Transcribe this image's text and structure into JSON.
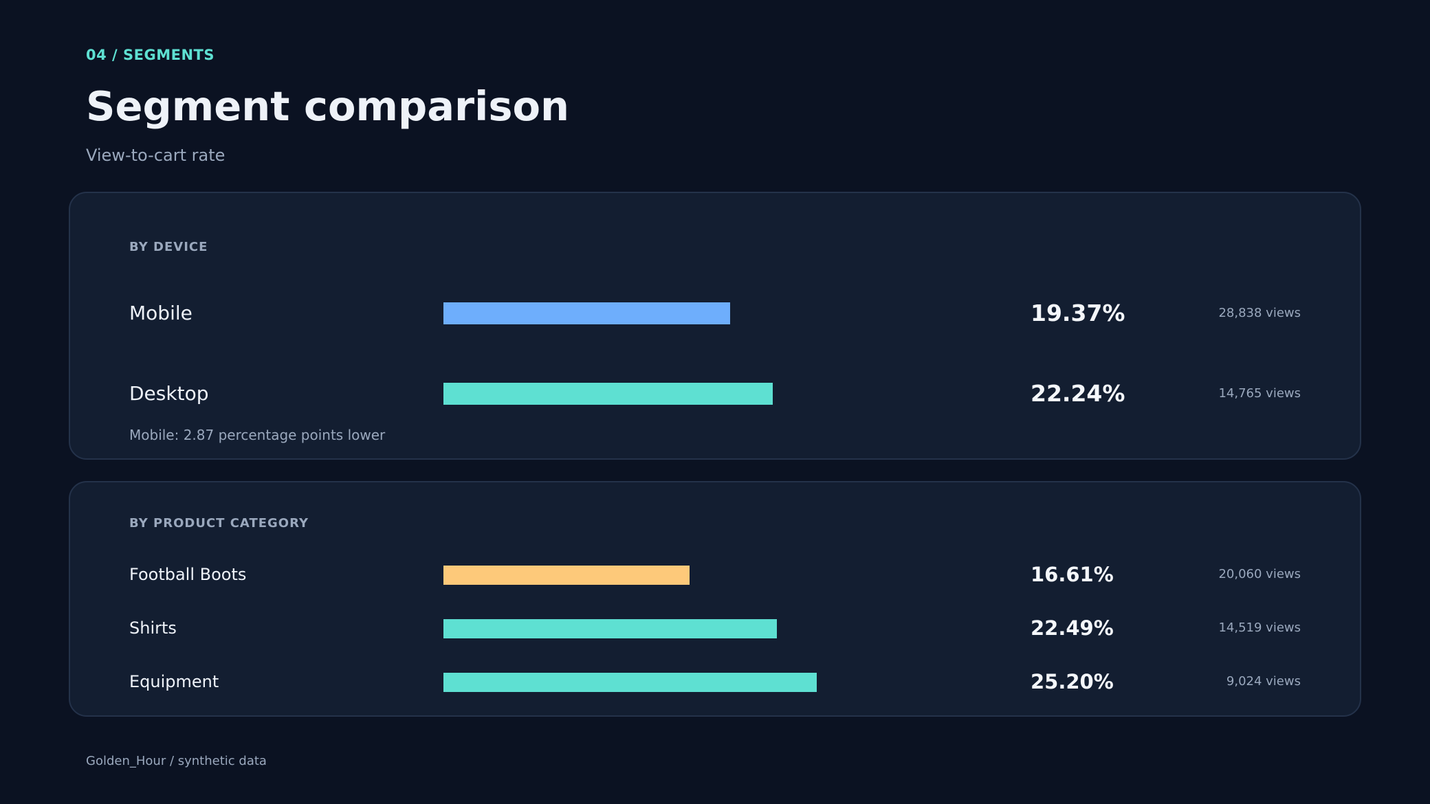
{
  "header": {
    "eyebrow": "04 / SEGMENTS",
    "title": "Segment comparison",
    "subtitle": "View-to-cart rate"
  },
  "footer": {
    "text": "Golden_Hour  /  synthetic data"
  },
  "colors": {
    "mobile": "#6eaefc",
    "teal": "#5ee0d2",
    "orange": "#fdc97a"
  },
  "chart_data": [
    {
      "type": "bar",
      "title": "BY DEVICE",
      "xlim": [
        0,
        36.2
      ],
      "categories": [
        "Mobile",
        "Desktop"
      ],
      "values": [
        19.37,
        22.24
      ],
      "value_labels": [
        "19.37%",
        "22.24%"
      ],
      "views_labels": [
        "28,838 views",
        "14,765 views"
      ],
      "bar_colors": [
        "#6eaefc",
        "#5ee0d2"
      ],
      "note": "Mobile: 2.87 percentage points lower"
    },
    {
      "type": "bar",
      "title": "BY PRODUCT CATEGORY",
      "xlim": [
        0,
        36.2
      ],
      "categories": [
        "Football Boots",
        "Shirts",
        "Equipment"
      ],
      "values": [
        16.61,
        22.49,
        25.2
      ],
      "value_labels": [
        "16.61%",
        "22.49%",
        "25.20%"
      ],
      "views_labels": [
        "20,060 views",
        "14,519 views",
        "9,024 views"
      ],
      "bar_colors": [
        "#fdc97a",
        "#5ee0d2",
        "#5ee0d2"
      ]
    }
  ]
}
